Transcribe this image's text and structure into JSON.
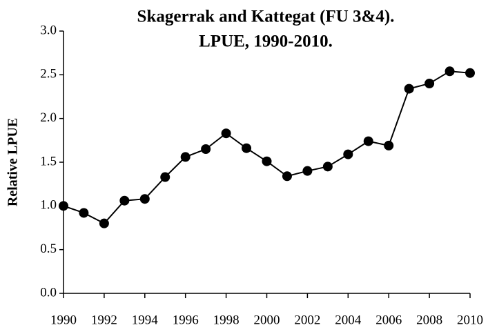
{
  "chart_data": {
    "type": "line",
    "title": [
      "Skagerrak and Kattegat (FU 3&4).",
      "LPUE, 1990-2010."
    ],
    "y_label": "Relative LPUE",
    "x": [
      1990,
      1991,
      1992,
      1993,
      1994,
      1995,
      1996,
      1997,
      1998,
      1999,
      2000,
      2001,
      2002,
      2003,
      2004,
      2005,
      2006,
      2007,
      2008,
      2009,
      2010
    ],
    "series": [
      {
        "name": "LPUE",
        "color": "#000000",
        "values": [
          1.0,
          0.92,
          0.8,
          1.06,
          1.08,
          1.33,
          1.56,
          1.65,
          1.83,
          1.66,
          1.51,
          1.34,
          1.4,
          1.45,
          1.59,
          1.74,
          1.69,
          2.34,
          2.4,
          2.54,
          2.52
        ]
      }
    ],
    "xlim": [
      1990,
      2010
    ],
    "xticks": [
      1990,
      1992,
      1994,
      1996,
      1998,
      2000,
      2002,
      2004,
      2006,
      2008,
      2010
    ],
    "ylim": [
      0,
      3
    ],
    "yticks": [
      {
        "value": 0,
        "label": "0.0"
      },
      {
        "value": 0.5,
        "label": "0.5"
      },
      {
        "value": 1,
        "label": "1.0"
      },
      {
        "value": 1.5,
        "label": "1.5"
      },
      {
        "value": 2,
        "label": "2.0"
      },
      {
        "value": 2.5,
        "label": "2.5"
      },
      {
        "value": 3,
        "label": "3.0"
      }
    ],
    "grid": false
  }
}
